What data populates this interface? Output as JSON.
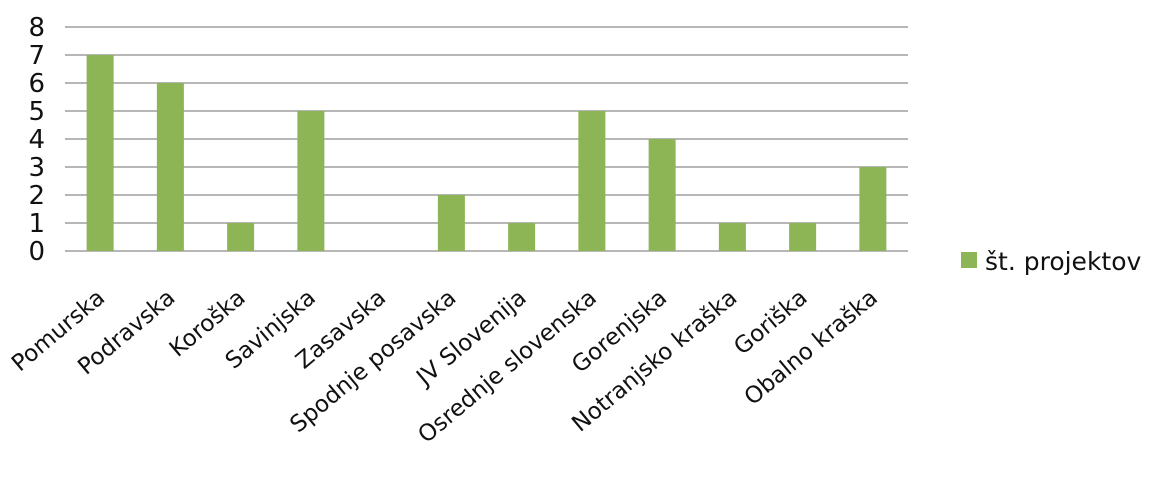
{
  "chart_data": {
    "type": "bar",
    "title": "",
    "xlabel": "",
    "ylabel": "",
    "categories": [
      "Pomurska",
      "Podravska",
      "Koroška",
      "Savinjska",
      "Zasavska",
      "Spodnje posavska",
      "JV Slovenija",
      "Osrednje slovenska",
      "Gorenjska",
      "Notranjsko kraška",
      "Goriška",
      "Obalno kraška"
    ],
    "series": [
      {
        "name": "št. projektov",
        "values": [
          7,
          6,
          1,
          5,
          0,
          2,
          1,
          5,
          4,
          1,
          1,
          3
        ],
        "color": "#8db455"
      }
    ],
    "ylim": [
      0,
      8
    ],
    "yticks": [
      0,
      1,
      2,
      3,
      4,
      5,
      6,
      7,
      8
    ],
    "grid": true,
    "legend_position": "right"
  }
}
